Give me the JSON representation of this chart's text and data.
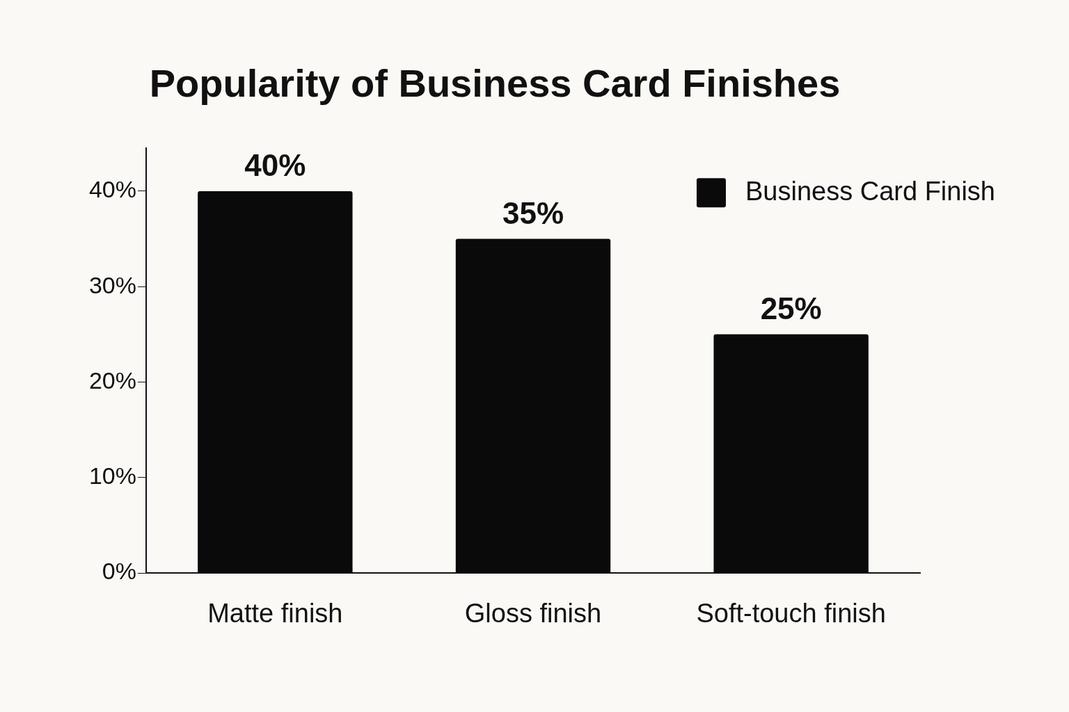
{
  "chart_data": {
    "type": "bar",
    "title": "Popularity of Business Card Finishes",
    "categories": [
      "Matte finish",
      "Gloss finish",
      "Soft-touch finish"
    ],
    "series": [
      {
        "name": "Business Card Finish",
        "color": "#0a0a0a",
        "values": [
          40,
          35,
          25
        ]
      }
    ],
    "ylim": [
      0,
      44.5
    ],
    "yticks": [
      {
        "value": 0,
        "label": "0%"
      },
      {
        "value": 10,
        "label": "10%"
      },
      {
        "value": 20,
        "label": "20%"
      },
      {
        "value": 30,
        "label": "30%"
      },
      {
        "value": 40,
        "label": "40%"
      }
    ],
    "value_labels": [
      "40%",
      "35%",
      "25%"
    ],
    "legend": "top right"
  }
}
